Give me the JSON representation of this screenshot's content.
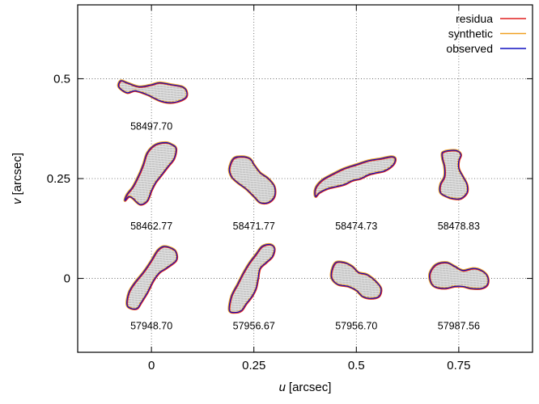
{
  "chart_data": {
    "type": "scatter",
    "xlabel": {
      "var": "u",
      "unit": "[arcsec]"
    },
    "ylabel": {
      "var": "v",
      "unit": "[arcsec]"
    },
    "xlim": [
      -0.18,
      0.93
    ],
    "ylim": [
      -0.185,
      0.685
    ],
    "xticks": [
      0,
      0.25,
      0.5,
      0.75
    ],
    "xtick_labels": [
      "0",
      "0.25",
      "0.5",
      "0.75"
    ],
    "yticks": [
      0,
      0.25,
      0.5
    ],
    "ytick_labels": [
      "0",
      "0.25",
      "0.5"
    ],
    "grid": true,
    "grid_style": "dotted",
    "legend_placement": "top-right",
    "series": [
      {
        "name": "residua",
        "color": "#e02020"
      },
      {
        "name": "synthetic",
        "color": "#f0a020"
      },
      {
        "name": "observed",
        "color": "#1010c0"
      }
    ],
    "panels": [
      {
        "epoch": "58497.70",
        "center": [
          0,
          0.5
        ],
        "points": [
          [
            -0.075,
            -0.005
          ],
          [
            -0.06,
            -0.01
          ],
          [
            -0.03,
            -0.02
          ],
          [
            0.0,
            -0.015
          ],
          [
            0.02,
            -0.01
          ],
          [
            0.05,
            -0.015
          ],
          [
            0.075,
            -0.02
          ],
          [
            0.085,
            -0.03
          ],
          [
            0.085,
            -0.045
          ],
          [
            0.07,
            -0.055
          ],
          [
            0.045,
            -0.06
          ],
          [
            0.02,
            -0.055
          ],
          [
            -0.01,
            -0.04
          ],
          [
            -0.04,
            -0.03
          ],
          [
            -0.06,
            -0.035
          ],
          [
            -0.08,
            -0.02
          ]
        ]
      },
      {
        "epoch": "58462.77",
        "center": [
          0,
          0.25
        ],
        "points": [
          [
            -0.065,
            -0.055
          ],
          [
            -0.055,
            -0.045
          ],
          [
            -0.045,
            -0.05
          ],
          [
            -0.035,
            -0.06
          ],
          [
            -0.025,
            -0.065
          ],
          [
            -0.01,
            -0.055
          ],
          [
            0.0,
            -0.03
          ],
          [
            0.01,
            -0.01
          ],
          [
            0.025,
            0.01
          ],
          [
            0.04,
            0.03
          ],
          [
            0.055,
            0.05
          ],
          [
            0.06,
            0.075
          ],
          [
            0.05,
            0.085
          ],
          [
            0.035,
            0.09
          ],
          [
            0.01,
            0.085
          ],
          [
            -0.01,
            0.065
          ],
          [
            -0.02,
            0.035
          ],
          [
            -0.03,
            0.01
          ],
          [
            -0.045,
            -0.02
          ],
          [
            -0.06,
            -0.04
          ]
        ]
      },
      {
        "epoch": "58471.77",
        "center": [
          0.25,
          0.25
        ],
        "points": [
          [
            -0.06,
            0.025
          ],
          [
            -0.05,
            0.05
          ],
          [
            -0.03,
            0.055
          ],
          [
            -0.01,
            0.05
          ],
          [
            0.0,
            0.035
          ],
          [
            0.015,
            0.015
          ],
          [
            0.035,
            0.0
          ],
          [
            0.05,
            -0.02
          ],
          [
            0.05,
            -0.045
          ],
          [
            0.035,
            -0.06
          ],
          [
            0.015,
            -0.06
          ],
          [
            0.0,
            -0.045
          ],
          [
            -0.02,
            -0.025
          ],
          [
            -0.04,
            -0.01
          ],
          [
            -0.055,
            0.005
          ]
        ]
      },
      {
        "epoch": "58474.73",
        "center": [
          0.5,
          0.25
        ],
        "points": [
          [
            -0.1,
            -0.045
          ],
          [
            -0.09,
            -0.035
          ],
          [
            -0.07,
            -0.025
          ],
          [
            -0.05,
            -0.02
          ],
          [
            -0.03,
            -0.015
          ],
          [
            -0.01,
            -0.005
          ],
          [
            0.01,
            0.0
          ],
          [
            0.03,
            0.01
          ],
          [
            0.05,
            0.015
          ],
          [
            0.07,
            0.02
          ],
          [
            0.09,
            0.035
          ],
          [
            0.095,
            0.05
          ],
          [
            0.085,
            0.055
          ],
          [
            0.06,
            0.05
          ],
          [
            0.03,
            0.045
          ],
          [
            0.0,
            0.035
          ],
          [
            -0.03,
            0.025
          ],
          [
            -0.06,
            0.01
          ],
          [
            -0.085,
            -0.005
          ],
          [
            -0.1,
            -0.025
          ]
        ]
      },
      {
        "epoch": "58478.83",
        "center": [
          0.75,
          0.25
        ],
        "points": [
          [
            -0.04,
            0.065
          ],
          [
            -0.025,
            0.07
          ],
          [
            -0.005,
            0.07
          ],
          [
            0.005,
            0.06
          ],
          [
            0.0,
            0.045
          ],
          [
            0.0,
            0.025
          ],
          [
            0.01,
            0.005
          ],
          [
            0.02,
            -0.015
          ],
          [
            0.02,
            -0.035
          ],
          [
            0.005,
            -0.05
          ],
          [
            -0.015,
            -0.05
          ],
          [
            -0.03,
            -0.045
          ],
          [
            -0.045,
            -0.035
          ],
          [
            -0.045,
            -0.015
          ],
          [
            -0.035,
            0.005
          ],
          [
            -0.035,
            0.03
          ],
          [
            -0.04,
            0.05
          ]
        ]
      },
      {
        "epoch": "57948.70",
        "center": [
          0,
          0
        ],
        "points": [
          [
            -0.06,
            -0.065
          ],
          [
            -0.05,
            -0.075
          ],
          [
            -0.035,
            -0.075
          ],
          [
            -0.025,
            -0.06
          ],
          [
            -0.01,
            -0.035
          ],
          [
            0.005,
            -0.005
          ],
          [
            0.02,
            0.015
          ],
          [
            0.035,
            0.025
          ],
          [
            0.06,
            0.045
          ],
          [
            0.06,
            0.065
          ],
          [
            0.05,
            0.075
          ],
          [
            0.03,
            0.08
          ],
          [
            0.015,
            0.07
          ],
          [
            0.0,
            0.045
          ],
          [
            -0.02,
            0.015
          ],
          [
            -0.04,
            -0.01
          ],
          [
            -0.055,
            -0.035
          ]
        ]
      },
      {
        "epoch": "57956.67",
        "center": [
          0.25,
          0
        ],
        "points": [
          [
            -0.06,
            -0.08
          ],
          [
            -0.045,
            -0.085
          ],
          [
            -0.03,
            -0.08
          ],
          [
            -0.02,
            -0.065
          ],
          [
            -0.005,
            -0.045
          ],
          [
            0.005,
            -0.025
          ],
          [
            0.01,
            0.0
          ],
          [
            0.015,
            0.025
          ],
          [
            0.03,
            0.04
          ],
          [
            0.045,
            0.055
          ],
          [
            0.05,
            0.075
          ],
          [
            0.04,
            0.085
          ],
          [
            0.02,
            0.08
          ],
          [
            0.005,
            0.06
          ],
          [
            -0.01,
            0.04
          ],
          [
            -0.025,
            0.015
          ],
          [
            -0.04,
            -0.015
          ],
          [
            -0.055,
            -0.045
          ]
        ]
      },
      {
        "epoch": "57956.70",
        "center": [
          0.5,
          0
        ],
        "points": [
          [
            -0.06,
            0.02
          ],
          [
            -0.05,
            0.04
          ],
          [
            -0.03,
            0.04
          ],
          [
            -0.01,
            0.03
          ],
          [
            0.005,
            0.015
          ],
          [
            0.025,
            0.01
          ],
          [
            0.045,
            -0.005
          ],
          [
            0.06,
            -0.025
          ],
          [
            0.055,
            -0.045
          ],
          [
            0.035,
            -0.05
          ],
          [
            0.015,
            -0.045
          ],
          [
            0.0,
            -0.03
          ],
          [
            -0.02,
            -0.02
          ],
          [
            -0.045,
            -0.015
          ],
          [
            -0.06,
            0.0
          ]
        ]
      },
      {
        "epoch": "57987.56",
        "center": [
          0.75,
          0
        ],
        "points": [
          [
            -0.07,
            0.015
          ],
          [
            -0.055,
            0.035
          ],
          [
            -0.03,
            0.04
          ],
          [
            -0.01,
            0.03
          ],
          [
            0.01,
            0.02
          ],
          [
            0.035,
            0.025
          ],
          [
            0.055,
            0.02
          ],
          [
            0.07,
            0.005
          ],
          [
            0.07,
            -0.015
          ],
          [
            0.055,
            -0.025
          ],
          [
            0.03,
            -0.025
          ],
          [
            0.01,
            -0.02
          ],
          [
            -0.01,
            -0.02
          ],
          [
            -0.035,
            -0.025
          ],
          [
            -0.06,
            -0.02
          ],
          [
            -0.07,
            -0.005
          ]
        ]
      }
    ]
  }
}
